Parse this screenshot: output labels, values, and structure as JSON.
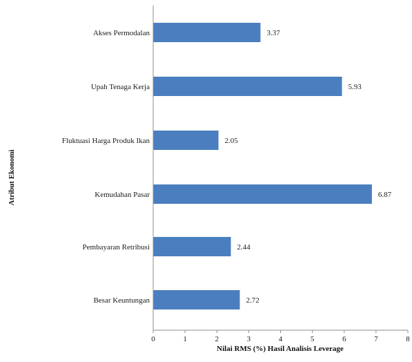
{
  "chart_data": {
    "type": "bar",
    "orientation": "horizontal",
    "title": "",
    "xlabel": "Nilai RMS (%) Hasil Analisis Leverage",
    "ylabel": "Atribut Ekonomi",
    "xlim": [
      0,
      8
    ],
    "ticks": [
      "0",
      "1",
      "2",
      "3",
      "4",
      "5",
      "6",
      "7",
      "8"
    ],
    "grid": false,
    "legend": "none",
    "bar_color": "#4a7ebf",
    "categories": [
      "Akses Permodalan",
      "Upah Tenaga Kerja",
      "Fluktuasi Harga Produk Ikan",
      "Kemudahan Pasar",
      "Pembayaran Retribusi",
      "Besar Keuntungan"
    ],
    "values": [
      3.37,
      5.93,
      2.05,
      6.87,
      2.44,
      2.72
    ],
    "value_labels": [
      "3.37",
      "5.93",
      "2.05",
      "6.87",
      "2.44",
      "2.72"
    ]
  }
}
